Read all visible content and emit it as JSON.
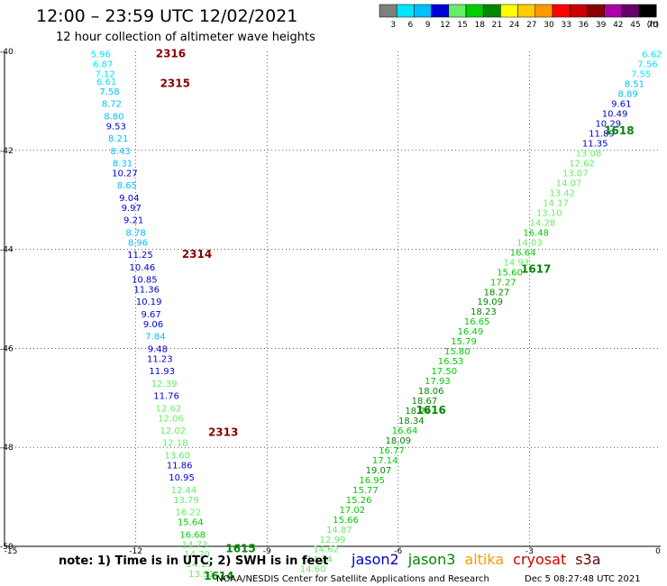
{
  "header": {
    "title": "12:00 – 23:59 UTC 12/02/2021",
    "subtitle": "12 hour collection of altimeter wave heights"
  },
  "colorbar": {
    "unit": "(ft)",
    "bins": [
      {
        "color": "#7f7f7f",
        "label": "3"
      },
      {
        "color": "#00e5ff",
        "label": "6"
      },
      {
        "color": "#00bfff",
        "label": "9"
      },
      {
        "color": "#0000d8",
        "label": "12"
      },
      {
        "color": "#66ee66",
        "label": "15"
      },
      {
        "color": "#00cc00",
        "label": "18"
      },
      {
        "color": "#008800",
        "label": "21"
      },
      {
        "color": "#ffff00",
        "label": "24"
      },
      {
        "color": "#ffcc00",
        "label": "27"
      },
      {
        "color": "#ff9900",
        "label": "30"
      },
      {
        "color": "#ff0000",
        "label": "33"
      },
      {
        "color": "#cc0000",
        "label": "36"
      },
      {
        "color": "#880000",
        "label": "39"
      },
      {
        "color": "#aa00aa",
        "label": "42"
      },
      {
        "color": "#660066",
        "label": "45"
      },
      {
        "color": "#000000",
        "label": "70"
      }
    ]
  },
  "note": "note:  1) Time is in UTC;  2) SWH is in feet",
  "legend": [
    {
      "name": "jason2",
      "color": "#0000cc"
    },
    {
      "name": "jason3",
      "color": "#008800"
    },
    {
      "name": "altika",
      "color": "#ff9900"
    },
    {
      "name": "cryosat",
      "color": "#cc0000"
    },
    {
      "name": "s3a",
      "color": "#660000"
    }
  ],
  "footer": {
    "left": "NOAA/NESDIS Center for Satellite Applications and Research",
    "right": "Dec  5 08:27:48 UTC 2021"
  },
  "chart_data": {
    "type": "scatter",
    "title": "12:00 – 23:59 UTC 12/02/2021",
    "subtitle": "12 hour collection of altimeter wave heights",
    "xlabel": "",
    "ylabel": "",
    "xlim": [
      -15,
      0
    ],
    "ylim": [
      -50,
      -40
    ],
    "x_ticks": [
      -15,
      -12,
      -9,
      -6,
      -3,
      0
    ],
    "y_ticks": [
      -40,
      -42,
      -44,
      -46,
      -48,
      -50
    ],
    "grid": true,
    "grid_lines_x": [
      -12,
      -9,
      -6,
      -3
    ],
    "grid_lines_y": [
      -42,
      -44,
      -46,
      -48
    ],
    "colors": {
      "light_cyan": "#00e5ff",
      "cyan": "#00bfff",
      "blue": "#0000d8",
      "light_green": "#66ee66",
      "green": "#00cc00",
      "dark_green": "#008800",
      "dark_red": "#880000"
    },
    "series": [
      {
        "name": "cryosat",
        "color": "#880000",
        "points": [
          {
            "lon": -12.8,
            "lat": -40.05,
            "swh": "5.96",
            "c": "#00e5ff"
          },
          {
            "lon": -12.75,
            "lat": -40.25,
            "swh": "6.87",
            "c": "#00e5ff"
          },
          {
            "lon": -12.7,
            "lat": -40.45,
            "swh": "7.12",
            "c": "#00e5ff"
          },
          {
            "lon": -12.67,
            "lat": -40.6,
            "swh": "6.61",
            "c": "#00e5ff"
          },
          {
            "lon": -12.6,
            "lat": -40.8,
            "swh": "7.58",
            "c": "#00bfff"
          },
          {
            "lon": -12.55,
            "lat": -41.05,
            "swh": "8.72",
            "c": "#00bfff"
          },
          {
            "lon": -12.5,
            "lat": -41.3,
            "swh": "8.80",
            "c": "#00bfff"
          },
          {
            "lon": -12.45,
            "lat": -41.5,
            "swh": "9.53",
            "c": "#0000d8"
          },
          {
            "lon": -12.4,
            "lat": -41.75,
            "swh": "8.21",
            "c": "#00bfff"
          },
          {
            "lon": -12.35,
            "lat": -42.0,
            "swh": "8.43",
            "c": "#00bfff"
          },
          {
            "lon": -12.3,
            "lat": -42.25,
            "swh": "8.31",
            "c": "#00bfff"
          },
          {
            "lon": -12.25,
            "lat": -42.45,
            "swh": "10.27",
            "c": "#0000d8"
          },
          {
            "lon": -12.2,
            "lat": -42.7,
            "swh": "8.65",
            "c": "#00bfff"
          },
          {
            "lon": -12.15,
            "lat": -42.95,
            "swh": "9.04",
            "c": "#0000d8"
          },
          {
            "lon": -12.1,
            "lat": -43.15,
            "swh": "9.97",
            "c": "#0000d8"
          },
          {
            "lon": -12.05,
            "lat": -43.4,
            "swh": "9.21",
            "c": "#0000d8"
          },
          {
            "lon": -12.0,
            "lat": -43.65,
            "swh": "8.78",
            "c": "#00bfff"
          },
          {
            "lon": -11.95,
            "lat": -43.85,
            "swh": "8.96",
            "c": "#00bfff"
          },
          {
            "lon": -11.9,
            "lat": -44.1,
            "swh": "11.25",
            "c": "#0000d8"
          },
          {
            "lon": -11.85,
            "lat": -44.35,
            "swh": "10.46",
            "c": "#0000d8"
          },
          {
            "lon": -11.8,
            "lat": -44.6,
            "swh": "10.85",
            "c": "#0000d8"
          },
          {
            "lon": -11.75,
            "lat": -44.8,
            "swh": "11.36",
            "c": "#0000d8"
          },
          {
            "lon": -11.7,
            "lat": -45.05,
            "swh": "10.19",
            "c": "#0000d8"
          },
          {
            "lon": -11.65,
            "lat": -45.3,
            "swh": "9.67",
            "c": "#0000d8"
          },
          {
            "lon": -11.6,
            "lat": -45.5,
            "swh": "9.06",
            "c": "#0000d8"
          },
          {
            "lon": -11.55,
            "lat": -45.75,
            "swh": "7.84",
            "c": "#00bfff"
          },
          {
            "lon": -11.5,
            "lat": -46.0,
            "swh": "9.48",
            "c": "#0000d8"
          },
          {
            "lon": -11.45,
            "lat": -46.2,
            "swh": "11.23",
            "c": "#0000d8"
          },
          {
            "lon": -11.4,
            "lat": -46.45,
            "swh": "11.93",
            "c": "#0000d8"
          },
          {
            "lon": -11.35,
            "lat": -46.7,
            "swh": "12.39",
            "c": "#66ee66"
          },
          {
            "lon": -11.3,
            "lat": -46.95,
            "swh": "11.76",
            "c": "#0000d8"
          },
          {
            "lon": -11.25,
            "lat": -47.2,
            "swh": "12.62",
            "c": "#66ee66"
          },
          {
            "lon": -11.2,
            "lat": -47.4,
            "swh": "12.06",
            "c": "#66ee66"
          },
          {
            "lon": -11.15,
            "lat": -47.65,
            "swh": "12.02",
            "c": "#66ee66"
          },
          {
            "lon": -11.1,
            "lat": -47.9,
            "swh": "12.18",
            "c": "#66ee66"
          },
          {
            "lon": -11.05,
            "lat": -48.15,
            "swh": "13.60",
            "c": "#66ee66"
          },
          {
            "lon": -11.0,
            "lat": -48.35,
            "swh": "11.86",
            "c": "#0000d8"
          },
          {
            "lon": -10.95,
            "lat": -48.6,
            "swh": "10.95",
            "c": "#0000d8"
          },
          {
            "lon": -10.9,
            "lat": -48.85,
            "swh": "12.44",
            "c": "#66ee66"
          },
          {
            "lon": -10.85,
            "lat": -49.05,
            "swh": "13.79",
            "c": "#66ee66"
          },
          {
            "lon": -10.8,
            "lat": -49.3,
            "swh": "16.22",
            "c": "#66ee66"
          },
          {
            "lon": -10.75,
            "lat": -49.5,
            "swh": "15.64",
            "c": "#00cc00"
          },
          {
            "lon": -10.7,
            "lat": -49.75,
            "swh": "16.68",
            "c": "#00cc00"
          },
          {
            "lon": -10.65,
            "lat": -49.95,
            "swh": "14.73",
            "c": "#66ee66"
          },
          {
            "lon": -10.6,
            "lat": -50.15,
            "swh": "14.70",
            "c": "#66ee66"
          },
          {
            "lon": -10.55,
            "lat": -50.35,
            "swh": "14.19",
            "c": "#66ee66"
          },
          {
            "lon": -10.5,
            "lat": -50.55,
            "swh": "13.91",
            "c": "#66ee66"
          }
        ]
      },
      {
        "name": "jason3",
        "color": "#008800",
        "points": [
          {
            "lon": -0.2,
            "lat": -40.05,
            "swh": "6.62",
            "c": "#00e5ff"
          },
          {
            "lon": -0.3,
            "lat": -40.25,
            "swh": "7.56",
            "c": "#00e5ff"
          },
          {
            "lon": -0.45,
            "lat": -40.45,
            "swh": "7.55",
            "c": "#00e5ff"
          },
          {
            "lon": -0.6,
            "lat": -40.65,
            "swh": "8.51",
            "c": "#00bfff"
          },
          {
            "lon": -0.75,
            "lat": -40.85,
            "swh": "8.89",
            "c": "#00bfff"
          },
          {
            "lon": -0.9,
            "lat": -41.05,
            "swh": "9.61",
            "c": "#0000d8"
          },
          {
            "lon": -1.05,
            "lat": -41.25,
            "swh": "10.49",
            "c": "#0000d8"
          },
          {
            "lon": -1.2,
            "lat": -41.45,
            "swh": "10.29",
            "c": "#0000d8"
          },
          {
            "lon": -1.35,
            "lat": -41.65,
            "swh": "11.89",
            "c": "#0000d8"
          },
          {
            "lon": -1.5,
            "lat": -41.85,
            "swh": "11.35",
            "c": "#0000d8"
          },
          {
            "lon": -1.65,
            "lat": -42.05,
            "swh": "13.08",
            "c": "#66ee66"
          },
          {
            "lon": -1.8,
            "lat": -42.25,
            "swh": "12.62",
            "c": "#66ee66"
          },
          {
            "lon": -1.95,
            "lat": -42.45,
            "swh": "13.07",
            "c": "#66ee66"
          },
          {
            "lon": -2.1,
            "lat": -42.65,
            "swh": "14.07",
            "c": "#66ee66"
          },
          {
            "lon": -2.25,
            "lat": -42.85,
            "swh": "13.42",
            "c": "#66ee66"
          },
          {
            "lon": -2.4,
            "lat": -43.05,
            "swh": "14.17",
            "c": "#66ee66"
          },
          {
            "lon": -2.55,
            "lat": -43.25,
            "swh": "13.10",
            "c": "#66ee66"
          },
          {
            "lon": -2.7,
            "lat": -43.45,
            "swh": "14.28",
            "c": "#66ee66"
          },
          {
            "lon": -2.85,
            "lat": -43.65,
            "swh": "16.48",
            "c": "#00cc00"
          },
          {
            "lon": -3.0,
            "lat": -43.85,
            "swh": "14.03",
            "c": "#66ee66"
          },
          {
            "lon": -3.15,
            "lat": -44.05,
            "swh": "16.64",
            "c": "#00cc00"
          },
          {
            "lon": -3.3,
            "lat": -44.25,
            "swh": "14.93",
            "c": "#66ee66"
          },
          {
            "lon": -3.45,
            "lat": -44.45,
            "swh": "15.60",
            "c": "#00cc00"
          },
          {
            "lon": -3.6,
            "lat": -44.65,
            "swh": "17.27",
            "c": "#00cc00"
          },
          {
            "lon": -3.75,
            "lat": -44.85,
            "swh": "18.27",
            "c": "#008800"
          },
          {
            "lon": -3.9,
            "lat": -45.05,
            "swh": "19.09",
            "c": "#008800"
          },
          {
            "lon": -4.05,
            "lat": -45.25,
            "swh": "18.23",
            "c": "#008800"
          },
          {
            "lon": -4.2,
            "lat": -45.45,
            "swh": "16.65",
            "c": "#00cc00"
          },
          {
            "lon": -4.35,
            "lat": -45.65,
            "swh": "16.49",
            "c": "#00cc00"
          },
          {
            "lon": -4.5,
            "lat": -45.85,
            "swh": "15.79",
            "c": "#00cc00"
          },
          {
            "lon": -4.65,
            "lat": -46.05,
            "swh": "15.80",
            "c": "#00cc00"
          },
          {
            "lon": -4.8,
            "lat": -46.25,
            "swh": "16.53",
            "c": "#00cc00"
          },
          {
            "lon": -4.95,
            "lat": -46.45,
            "swh": "17.50",
            "c": "#00cc00"
          },
          {
            "lon": -5.1,
            "lat": -46.65,
            "swh": "17.93",
            "c": "#00cc00"
          },
          {
            "lon": -5.25,
            "lat": -46.85,
            "swh": "18.06",
            "c": "#008800"
          },
          {
            "lon": -5.4,
            "lat": -47.05,
            "swh": "18.67",
            "c": "#008800"
          },
          {
            "lon": -5.55,
            "lat": -47.25,
            "swh": "18.24",
            "c": "#008800"
          },
          {
            "lon": -5.7,
            "lat": -47.45,
            "swh": "18.34",
            "c": "#008800"
          },
          {
            "lon": -5.85,
            "lat": -47.65,
            "swh": "16.64",
            "c": "#00cc00"
          },
          {
            "lon": -6.0,
            "lat": -47.85,
            "swh": "18.09",
            "c": "#008800"
          },
          {
            "lon": -6.15,
            "lat": -48.05,
            "swh": "16.77",
            "c": "#00cc00"
          },
          {
            "lon": -6.3,
            "lat": -48.25,
            "swh": "17.14",
            "c": "#00cc00"
          },
          {
            "lon": -6.45,
            "lat": -48.45,
            "swh": "19.07",
            "c": "#008800"
          },
          {
            "lon": -6.6,
            "lat": -48.65,
            "swh": "16.95",
            "c": "#00cc00"
          },
          {
            "lon": -6.75,
            "lat": -48.85,
            "swh": "15.77",
            "c": "#00cc00"
          },
          {
            "lon": -6.9,
            "lat": -49.05,
            "swh": "15.26",
            "c": "#00cc00"
          },
          {
            "lon": -7.05,
            "lat": -49.25,
            "swh": "17.02",
            "c": "#00cc00"
          },
          {
            "lon": -7.2,
            "lat": -49.45,
            "swh": "15.66",
            "c": "#00cc00"
          },
          {
            "lon": -7.35,
            "lat": -49.65,
            "swh": "14.87",
            "c": "#66ee66"
          },
          {
            "lon": -7.5,
            "lat": -49.85,
            "swh": "12.99",
            "c": "#66ee66"
          },
          {
            "lon": -7.65,
            "lat": -50.05,
            "swh": "14.62",
            "c": "#66ee66"
          },
          {
            "lon": -7.8,
            "lat": -50.25,
            "swh": "14.14",
            "c": "#66ee66"
          },
          {
            "lon": -7.95,
            "lat": -50.45,
            "swh": "14.60",
            "c": "#66ee66"
          }
        ]
      }
    ],
    "annotations": [
      {
        "text": "2316",
        "lon": -11.2,
        "lat": -40.05,
        "color": "#880000"
      },
      {
        "text": "2315",
        "lon": -11.1,
        "lat": -40.65,
        "color": "#880000"
      },
      {
        "text": "2314",
        "lon": -10.6,
        "lat": -44.1,
        "color": "#880000"
      },
      {
        "text": "2313",
        "lon": -10.0,
        "lat": -47.7,
        "color": "#880000"
      },
      {
        "text": "1618",
        "lon": -0.95,
        "lat": -41.6,
        "color": "#008800"
      },
      {
        "text": "1617",
        "lon": -2.85,
        "lat": -44.4,
        "color": "#008800"
      },
      {
        "text": "1616",
        "lon": -5.25,
        "lat": -47.25,
        "color": "#008800"
      },
      {
        "text": "1615",
        "lon": -9.6,
        "lat": -50.05,
        "color": "#008800"
      },
      {
        "text": "1614",
        "lon": -10.1,
        "lat": -50.6,
        "color": "#008800"
      }
    ]
  }
}
